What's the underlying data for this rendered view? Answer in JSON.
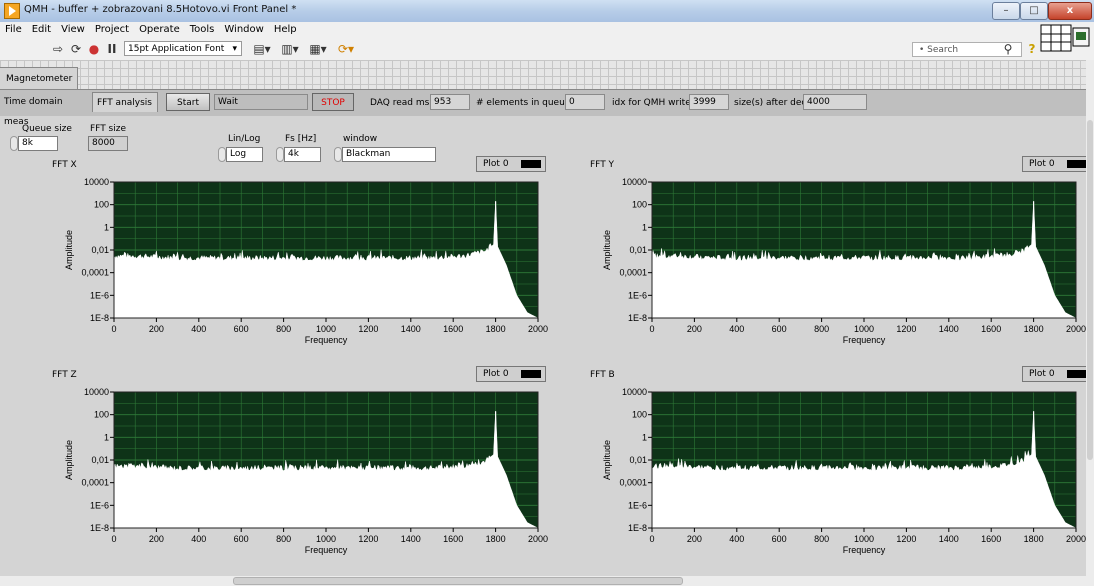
{
  "window": {
    "title": "QMH - buffer + zobrazovani 8.5Hotovo.vi Front Panel *",
    "buttons": [
      "minimize",
      "maximize",
      "close"
    ]
  },
  "menu": [
    "File",
    "Edit",
    "View",
    "Project",
    "Operate",
    "Tools",
    "Window",
    "Help"
  ],
  "toolbar": {
    "font": "15pt Application Font",
    "search_placeholder": "Search"
  },
  "tabs": {
    "outer": "Magnetometer",
    "inner": [
      "Time domain meas",
      "FFT analysis"
    ]
  },
  "controls": {
    "start_label": "Start",
    "status_value": "Wait",
    "stop_label": "STOP",
    "daq_read_label": "DAQ read ms",
    "daq_read_value": "953",
    "elements_label": "# elements in queue",
    "elements_value": "0",
    "idx_label": "idx for QMH write",
    "idx_value": "3999",
    "size_label": "size(s) after dec",
    "size_value": "4000",
    "queue_size_label": "Queue size",
    "queue_size_value": "8k",
    "fft_size_label": "FFT size",
    "fft_size_value": "8000",
    "linlog_label": "Lin/Log",
    "linlog_value": "Log",
    "fs_label": "Fs [Hz]",
    "fs_value": "4k",
    "window_label": "window",
    "window_value": "Blackman"
  },
  "colors": {
    "plot_bg": "#0e3318",
    "grid": "#2f7a38",
    "trace": "#ffffff",
    "stop_text": "#e00000"
  },
  "chart_data": [
    {
      "type": "area",
      "title": "FFT X",
      "legend": "Plot 0",
      "xlabel": "Frequency",
      "ylabel": "Amplitude",
      "y_scale": "log",
      "xlim": [
        0,
        2000
      ],
      "ylim": [
        1e-08,
        10000
      ],
      "x_ticks": [
        "0",
        "200",
        "400",
        "600",
        "800",
        "1000",
        "1200",
        "1400",
        "1600",
        "1800",
        "2000"
      ],
      "y_ticks": [
        "10000",
        "100",
        "1",
        "0,01",
        "0,0001",
        "1E-6",
        "1E-8"
      ],
      "x": [
        0,
        100,
        300,
        500,
        700,
        900,
        1100,
        1300,
        1500,
        1650,
        1750,
        1790,
        1800,
        1810,
        1850,
        1900,
        1950,
        2000
      ],
      "y": [
        0.003,
        0.003,
        0.002,
        0.002,
        0.002,
        0.002,
        0.002,
        0.002,
        0.002,
        0.003,
        0.008,
        0.03,
        200,
        0.02,
        0.0005,
        1e-06,
        3e-08,
        1e-08
      ]
    },
    {
      "type": "area",
      "title": "FFT Y",
      "legend": "Plot 0",
      "xlabel": "Frequency",
      "ylabel": "Amplitude",
      "y_scale": "log",
      "xlim": [
        0,
        2000
      ],
      "ylim": [
        1e-08,
        10000
      ],
      "x_ticks": [
        "0",
        "200",
        "400",
        "600",
        "800",
        "1000",
        "1200",
        "1400",
        "1600",
        "1800",
        "2000"
      ],
      "y_ticks": [
        "10000",
        "100",
        "1",
        "0,01",
        "0,0001",
        "1E-6",
        "1E-8"
      ],
      "x": [
        0,
        100,
        300,
        500,
        700,
        900,
        1100,
        1300,
        1500,
        1650,
        1750,
        1790,
        1800,
        1810,
        1850,
        1900,
        1950,
        2000
      ],
      "y": [
        0.003,
        0.003,
        0.002,
        0.002,
        0.002,
        0.002,
        0.002,
        0.002,
        0.002,
        0.003,
        0.008,
        0.03,
        200,
        0.02,
        0.0005,
        1e-06,
        3e-08,
        1e-08
      ]
    },
    {
      "type": "area",
      "title": "FFT Z",
      "legend": "Plot 0",
      "xlabel": "Frequency",
      "ylabel": "Amplitude",
      "y_scale": "log",
      "xlim": [
        0,
        2000
      ],
      "ylim": [
        1e-08,
        10000
      ],
      "x_ticks": [
        "0",
        "200",
        "400",
        "600",
        "800",
        "1000",
        "1200",
        "1400",
        "1600",
        "1800",
        "2000"
      ],
      "y_ticks": [
        "10000",
        "100",
        "1",
        "0,01",
        "0,0001",
        "1E-6",
        "1E-8"
      ],
      "x": [
        0,
        100,
        300,
        500,
        700,
        900,
        1100,
        1300,
        1500,
        1650,
        1750,
        1790,
        1800,
        1810,
        1850,
        1900,
        1950,
        2000
      ],
      "y": [
        0.003,
        0.003,
        0.002,
        0.002,
        0.002,
        0.002,
        0.002,
        0.002,
        0.002,
        0.003,
        0.008,
        0.03,
        200,
        0.02,
        0.0005,
        1e-06,
        3e-08,
        1e-08
      ]
    },
    {
      "type": "area",
      "title": "FFT B",
      "legend": "Plot 0",
      "xlabel": "Frequency",
      "ylabel": "Amplitude",
      "y_scale": "log",
      "xlim": [
        0,
        2000
      ],
      "ylim": [
        1e-08,
        10000
      ],
      "x_ticks": [
        "0",
        "200",
        "400",
        "600",
        "800",
        "1000",
        "1200",
        "1400",
        "1600",
        "1800",
        "2000"
      ],
      "y_ticks": [
        "10000",
        "100",
        "1",
        "0,01",
        "0,0001",
        "1E-6",
        "1E-8"
      ],
      "x": [
        0,
        100,
        300,
        500,
        700,
        900,
        1100,
        1300,
        1500,
        1650,
        1750,
        1790,
        1800,
        1810,
        1850,
        1900,
        1950,
        2000
      ],
      "y": [
        0.003,
        0.003,
        0.002,
        0.002,
        0.002,
        0.002,
        0.002,
        0.002,
        0.002,
        0.003,
        0.008,
        0.03,
        200,
        0.02,
        0.0005,
        1e-06,
        3e-08,
        1e-08
      ]
    }
  ]
}
